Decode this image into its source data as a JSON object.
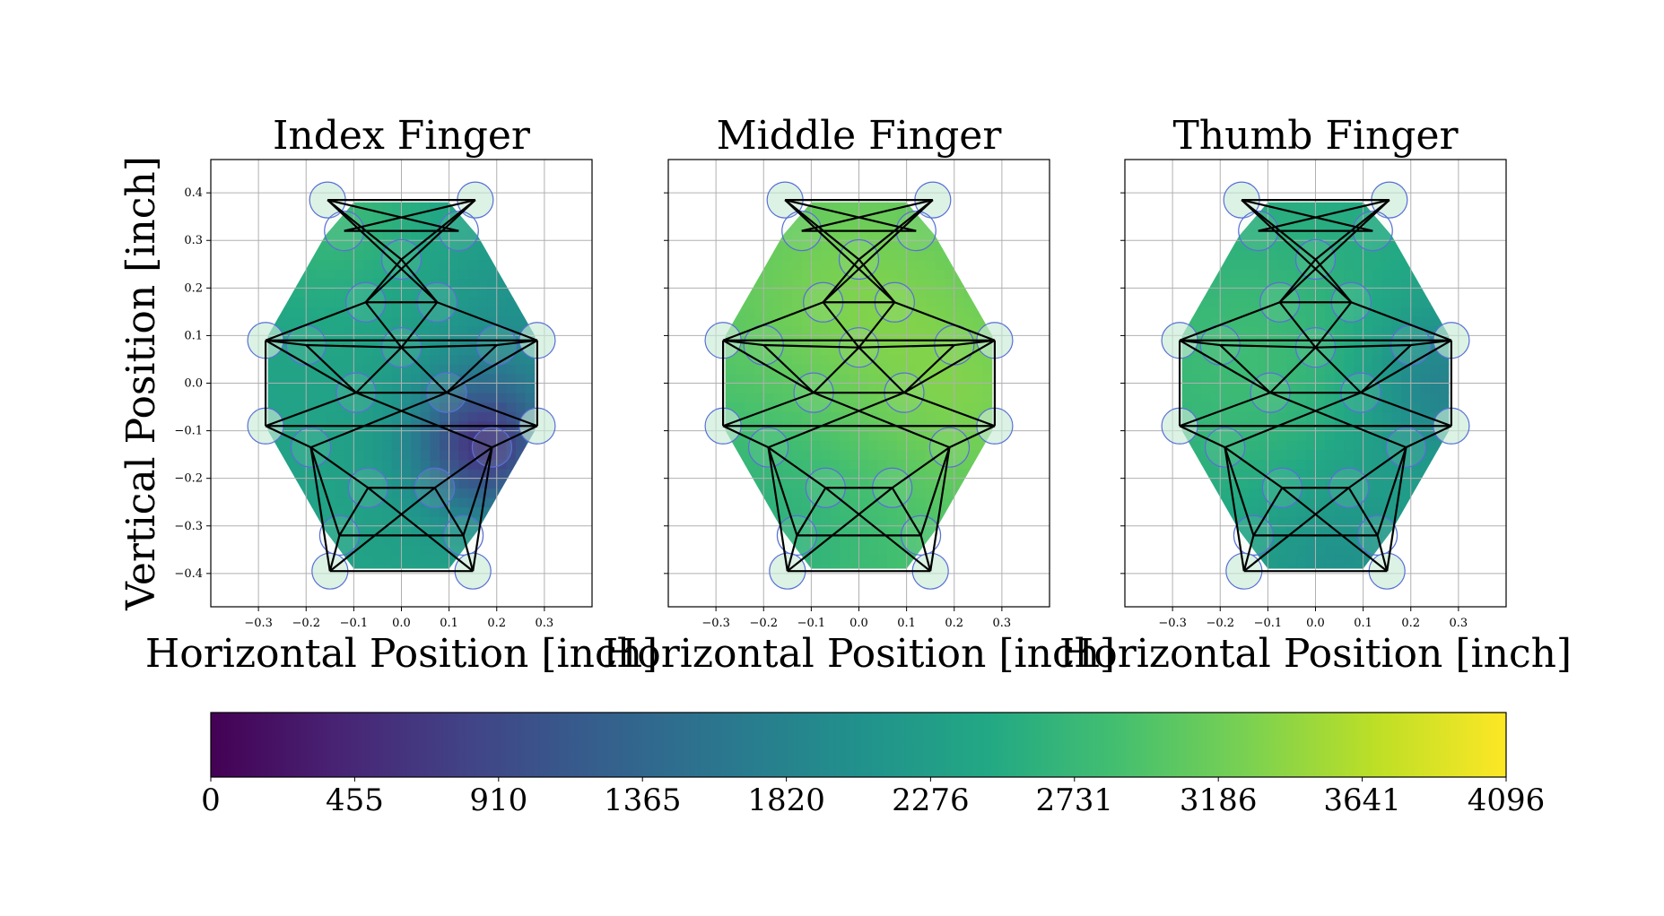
{
  "chart_data": {
    "type": "heatmap",
    "colormap": "viridis",
    "x_label": "Horizontal Position [inch]",
    "y_label": "Vertical Position [inch]",
    "xlim": [
      -0.4,
      0.4
    ],
    "ylim": [
      -0.47,
      0.47
    ],
    "x_ticks": [
      -0.3,
      -0.2,
      -0.1,
      0.0,
      0.1,
      0.2,
      0.3
    ],
    "x_tick_labels": [
      "−0.3",
      "−0.2",
      "−0.1",
      "0.0",
      "0.1",
      "0.2",
      "0.3"
    ],
    "y_ticks": [
      0.4,
      0.3,
      0.2,
      0.1,
      0.0,
      -0.1,
      -0.2,
      -0.3,
      -0.4
    ],
    "y_tick_labels": [
      "0.4",
      "0.3",
      "0.2",
      "0.1",
      "0.0",
      "−0.1",
      "−0.2",
      "−0.3",
      "−0.4"
    ],
    "grid": true,
    "colorbar": {
      "orientation": "horizontal",
      "placement": "bottom",
      "range": [
        0,
        4096
      ],
      "tick_labels": [
        "0",
        "455",
        "910",
        "1365",
        "1820",
        "2276",
        "2731",
        "3186",
        "3641",
        "4096"
      ]
    },
    "sensor_points": [
      {
        "x": -0.155,
        "y": 0.385
      },
      {
        "x": 0.155,
        "y": 0.385
      },
      {
        "x": -0.12,
        "y": 0.32
      },
      {
        "x": 0.12,
        "y": 0.32
      },
      {
        "x": 0.0,
        "y": 0.26
      },
      {
        "x": -0.075,
        "y": 0.17
      },
      {
        "x": 0.075,
        "y": 0.17
      },
      {
        "x": -0.285,
        "y": 0.09
      },
      {
        "x": 0.285,
        "y": 0.09
      },
      {
        "x": -0.2,
        "y": 0.08
      },
      {
        "x": 0.2,
        "y": 0.08
      },
      {
        "x": 0.0,
        "y": 0.075
      },
      {
        "x": -0.095,
        "y": -0.02
      },
      {
        "x": 0.095,
        "y": -0.02
      },
      {
        "x": -0.285,
        "y": -0.09
      },
      {
        "x": 0.285,
        "y": -0.09
      },
      {
        "x": -0.19,
        "y": -0.135
      },
      {
        "x": 0.19,
        "y": -0.135
      },
      {
        "x": -0.07,
        "y": -0.22
      },
      {
        "x": 0.07,
        "y": -0.22
      },
      {
        "x": -0.13,
        "y": -0.32
      },
      {
        "x": 0.13,
        "y": -0.32
      },
      {
        "x": -0.15,
        "y": -0.395
      },
      {
        "x": 0.15,
        "y": -0.395
      }
    ],
    "panels": [
      {
        "title": "Index Finger",
        "base_value": 2350,
        "anomalies": [
          {
            "x": 0.17,
            "y": -0.13,
            "value": 700,
            "spread": 0.1
          },
          {
            "x": -0.15,
            "y": 0.38,
            "value": 2750,
            "spread": 0.15
          },
          {
            "x": 0.25,
            "y": 0.1,
            "value": 2050,
            "spread": 0.15
          }
        ]
      },
      {
        "title": "Middle Finger",
        "base_value": 2950,
        "anomalies": [
          {
            "x": 0.0,
            "y": 0.15,
            "value": 3300,
            "spread": 0.2
          },
          {
            "x": -0.2,
            "y": -0.3,
            "value": 2600,
            "spread": 0.2
          },
          {
            "x": 0.25,
            "y": -0.05,
            "value": 3200,
            "spread": 0.15
          }
        ]
      },
      {
        "title": "Thumb Finger",
        "base_value": 2450,
        "anomalies": [
          {
            "x": 0.27,
            "y": 0.0,
            "value": 1800,
            "spread": 0.12
          },
          {
            "x": -0.15,
            "y": 0.05,
            "value": 2800,
            "spread": 0.2
          },
          {
            "x": 0.05,
            "y": -0.38,
            "value": 2050,
            "spread": 0.15
          }
        ]
      }
    ]
  }
}
